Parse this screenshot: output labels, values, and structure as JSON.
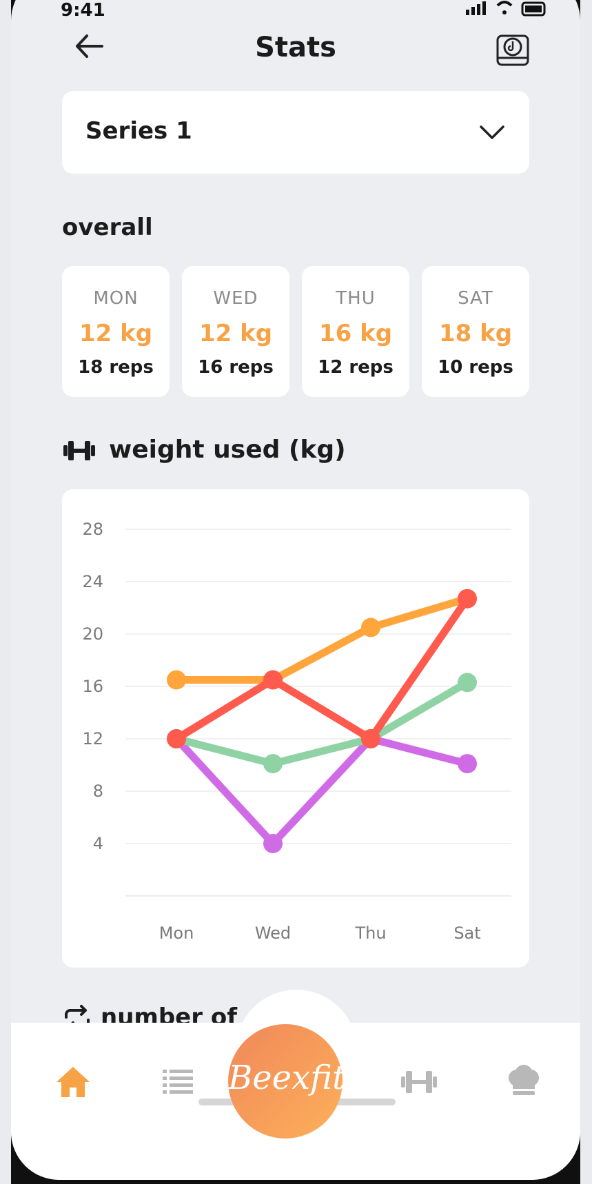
{
  "status_bar": {
    "time": "9:41",
    "icons": "signal wifi battery"
  },
  "header": {
    "title": "Stats",
    "back_icon": "arrow-left-icon",
    "action_icon": "music-box-icon"
  },
  "series_select": {
    "value": "Series 1",
    "icon": "chevron-down-icon"
  },
  "overall": {
    "title": "overall",
    "days": [
      {
        "day": "MON",
        "weight": "12 kg",
        "reps": "18 reps"
      },
      {
        "day": "WED",
        "weight": "12 kg",
        "reps": "16 reps"
      },
      {
        "day": "THU",
        "weight": "16 kg",
        "reps": "12 reps"
      },
      {
        "day": "SAT",
        "weight": "18 kg",
        "reps": "10 reps"
      }
    ]
  },
  "weight_section": {
    "title": "weight used (kg)",
    "icon": "dumbbell-icon"
  },
  "reps_section": {
    "title": "number of",
    "icon": "repeat-icon"
  },
  "colors": {
    "accent": "#f7a244",
    "background": "#eceef1",
    "card": "#ffffff"
  },
  "chart_data": {
    "type": "line",
    "categories": [
      "Mon",
      "Wed",
      "Thu",
      "Sat"
    ],
    "ylim": [
      0,
      28
    ],
    "yticks": [
      4,
      8,
      12,
      16,
      20,
      24,
      28
    ],
    "grid": true,
    "series": [
      {
        "values": [
          16.5,
          16.5,
          20.5,
          22.7
        ],
        "color": "#ffa53c"
      },
      {
        "values": [
          12,
          16.5,
          12,
          22.7
        ],
        "color": "#ff5a4e"
      },
      {
        "values": [
          12,
          10.1,
          12,
          16.3
        ],
        "color": "#8fd3a4"
      },
      {
        "values": [
          12,
          4,
          12,
          10.1
        ],
        "color": "#d06be6"
      }
    ]
  },
  "bottom_nav": {
    "items": [
      {
        "icon": "home-icon",
        "active": true
      },
      {
        "icon": "list-icon",
        "active": false
      },
      {
        "icon": "dumbbell-icon",
        "active": false
      },
      {
        "icon": "chef-hat-icon",
        "active": false
      }
    ],
    "center_label": "Beexfit"
  }
}
